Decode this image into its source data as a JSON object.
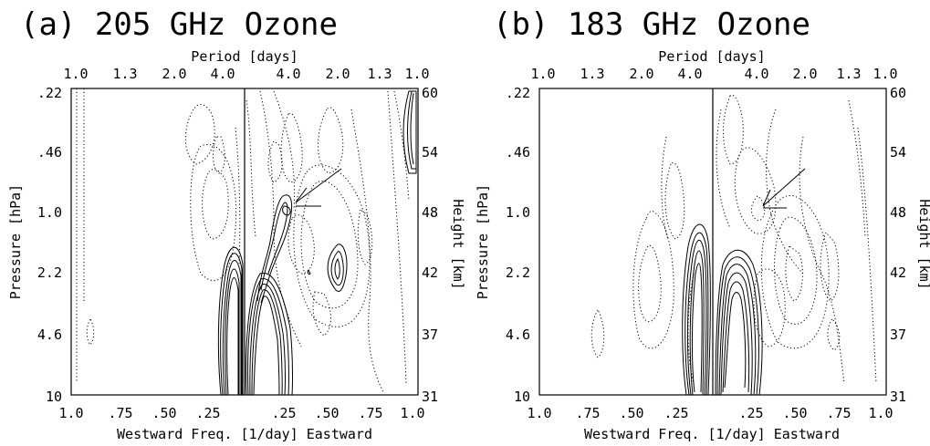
{
  "chart_data": [
    {
      "type": "contour",
      "title": "(a)  205 GHz Ozone",
      "top_axis_label": "Period [days]",
      "top_ticks": [
        "1.0",
        "1.3",
        "2.0",
        "4.0",
        "4.0",
        "2.0",
        "1.3",
        "1.0"
      ],
      "bottom_ticks": [
        "1.0",
        ".75",
        ".50",
        ".25",
        ".25",
        ".50",
        ".75",
        "1.0"
      ],
      "bottom_axis_label": "Westward  Freq. [1/day]  Eastward",
      "left_axis_label": "Pressure [hPa]",
      "left_ticks": [
        ".22",
        ".46",
        "1.0",
        "2.2",
        "4.6",
        "10"
      ],
      "right_axis_label": "Height [km]",
      "right_ticks": [
        "60",
        "54",
        "48",
        "42",
        "37",
        "31"
      ],
      "xlim": [
        -1.0,
        1.0
      ],
      "ylim_pressure_hPa": [
        10,
        0.22
      ],
      "annotation": "arrow pointing to contour at ~0.25 eastward, ~1.0 hPa"
    },
    {
      "type": "contour",
      "title": "(b)  183 GHz Ozone",
      "top_axis_label": "Period [days]",
      "top_ticks": [
        "1.0",
        "1.3",
        "2.0",
        "4.0",
        "4.0",
        "2.0",
        "1.3",
        "1.0"
      ],
      "bottom_ticks": [
        "1.0",
        ".75",
        ".50",
        ".25",
        ".25",
        ".50",
        ".75",
        "1.0"
      ],
      "bottom_axis_label": "Westward  Freq. [1/day]  Eastward",
      "left_axis_label": "Pressure [hPa]",
      "left_ticks": [
        ".22",
        ".46",
        "1.0",
        "2.2",
        "4.6",
        "10"
      ],
      "right_axis_label": "Height [km]",
      "right_ticks": [
        "60",
        "54",
        "48",
        "42",
        "37",
        "31"
      ],
      "xlim": [
        -1.0,
        1.0
      ],
      "ylim_pressure_hPa": [
        10,
        0.22
      ],
      "annotation": "arrow pointing to contour at ~0.25 eastward, ~1.0 hPa"
    }
  ]
}
